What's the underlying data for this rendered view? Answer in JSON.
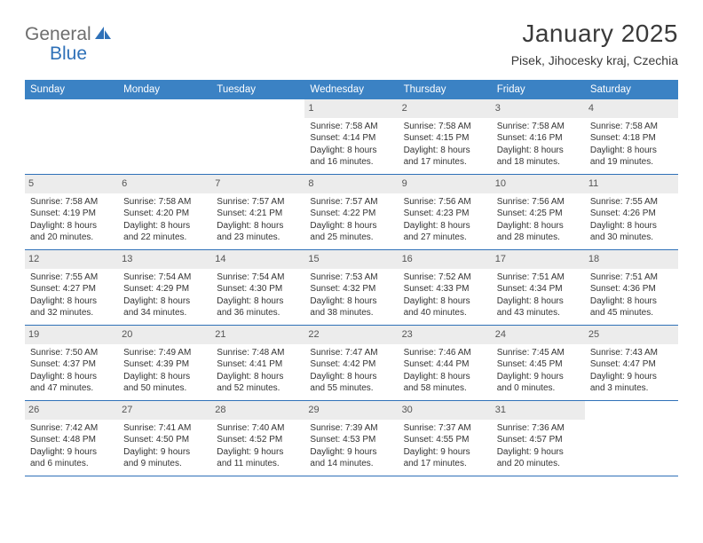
{
  "brand": {
    "part1": "General",
    "part2": "Blue"
  },
  "title": "January 2025",
  "location": "Pisek, Jihocesky kraj, Czechia",
  "colors": {
    "header_bar": "#3b82c4",
    "brand_gray": "#6e6e6e",
    "brand_blue": "#2f71b8",
    "row_border": "#2f71b8",
    "daynum_bg": "#ececec",
    "text": "#333333"
  },
  "daysOfWeek": [
    "Sunday",
    "Monday",
    "Tuesday",
    "Wednesday",
    "Thursday",
    "Friday",
    "Saturday"
  ],
  "weeks": [
    [
      null,
      null,
      null,
      {
        "n": "1",
        "sr": "Sunrise: 7:58 AM",
        "ss": "Sunset: 4:14 PM",
        "d1": "Daylight: 8 hours",
        "d2": "and 16 minutes."
      },
      {
        "n": "2",
        "sr": "Sunrise: 7:58 AM",
        "ss": "Sunset: 4:15 PM",
        "d1": "Daylight: 8 hours",
        "d2": "and 17 minutes."
      },
      {
        "n": "3",
        "sr": "Sunrise: 7:58 AM",
        "ss": "Sunset: 4:16 PM",
        "d1": "Daylight: 8 hours",
        "d2": "and 18 minutes."
      },
      {
        "n": "4",
        "sr": "Sunrise: 7:58 AM",
        "ss": "Sunset: 4:18 PM",
        "d1": "Daylight: 8 hours",
        "d2": "and 19 minutes."
      }
    ],
    [
      {
        "n": "5",
        "sr": "Sunrise: 7:58 AM",
        "ss": "Sunset: 4:19 PM",
        "d1": "Daylight: 8 hours",
        "d2": "and 20 minutes."
      },
      {
        "n": "6",
        "sr": "Sunrise: 7:58 AM",
        "ss": "Sunset: 4:20 PM",
        "d1": "Daylight: 8 hours",
        "d2": "and 22 minutes."
      },
      {
        "n": "7",
        "sr": "Sunrise: 7:57 AM",
        "ss": "Sunset: 4:21 PM",
        "d1": "Daylight: 8 hours",
        "d2": "and 23 minutes."
      },
      {
        "n": "8",
        "sr": "Sunrise: 7:57 AM",
        "ss": "Sunset: 4:22 PM",
        "d1": "Daylight: 8 hours",
        "d2": "and 25 minutes."
      },
      {
        "n": "9",
        "sr": "Sunrise: 7:56 AM",
        "ss": "Sunset: 4:23 PM",
        "d1": "Daylight: 8 hours",
        "d2": "and 27 minutes."
      },
      {
        "n": "10",
        "sr": "Sunrise: 7:56 AM",
        "ss": "Sunset: 4:25 PM",
        "d1": "Daylight: 8 hours",
        "d2": "and 28 minutes."
      },
      {
        "n": "11",
        "sr": "Sunrise: 7:55 AM",
        "ss": "Sunset: 4:26 PM",
        "d1": "Daylight: 8 hours",
        "d2": "and 30 minutes."
      }
    ],
    [
      {
        "n": "12",
        "sr": "Sunrise: 7:55 AM",
        "ss": "Sunset: 4:27 PM",
        "d1": "Daylight: 8 hours",
        "d2": "and 32 minutes."
      },
      {
        "n": "13",
        "sr": "Sunrise: 7:54 AM",
        "ss": "Sunset: 4:29 PM",
        "d1": "Daylight: 8 hours",
        "d2": "and 34 minutes."
      },
      {
        "n": "14",
        "sr": "Sunrise: 7:54 AM",
        "ss": "Sunset: 4:30 PM",
        "d1": "Daylight: 8 hours",
        "d2": "and 36 minutes."
      },
      {
        "n": "15",
        "sr": "Sunrise: 7:53 AM",
        "ss": "Sunset: 4:32 PM",
        "d1": "Daylight: 8 hours",
        "d2": "and 38 minutes."
      },
      {
        "n": "16",
        "sr": "Sunrise: 7:52 AM",
        "ss": "Sunset: 4:33 PM",
        "d1": "Daylight: 8 hours",
        "d2": "and 40 minutes."
      },
      {
        "n": "17",
        "sr": "Sunrise: 7:51 AM",
        "ss": "Sunset: 4:34 PM",
        "d1": "Daylight: 8 hours",
        "d2": "and 43 minutes."
      },
      {
        "n": "18",
        "sr": "Sunrise: 7:51 AM",
        "ss": "Sunset: 4:36 PM",
        "d1": "Daylight: 8 hours",
        "d2": "and 45 minutes."
      }
    ],
    [
      {
        "n": "19",
        "sr": "Sunrise: 7:50 AM",
        "ss": "Sunset: 4:37 PM",
        "d1": "Daylight: 8 hours",
        "d2": "and 47 minutes."
      },
      {
        "n": "20",
        "sr": "Sunrise: 7:49 AM",
        "ss": "Sunset: 4:39 PM",
        "d1": "Daylight: 8 hours",
        "d2": "and 50 minutes."
      },
      {
        "n": "21",
        "sr": "Sunrise: 7:48 AM",
        "ss": "Sunset: 4:41 PM",
        "d1": "Daylight: 8 hours",
        "d2": "and 52 minutes."
      },
      {
        "n": "22",
        "sr": "Sunrise: 7:47 AM",
        "ss": "Sunset: 4:42 PM",
        "d1": "Daylight: 8 hours",
        "d2": "and 55 minutes."
      },
      {
        "n": "23",
        "sr": "Sunrise: 7:46 AM",
        "ss": "Sunset: 4:44 PM",
        "d1": "Daylight: 8 hours",
        "d2": "and 58 minutes."
      },
      {
        "n": "24",
        "sr": "Sunrise: 7:45 AM",
        "ss": "Sunset: 4:45 PM",
        "d1": "Daylight: 9 hours",
        "d2": "and 0 minutes."
      },
      {
        "n": "25",
        "sr": "Sunrise: 7:43 AM",
        "ss": "Sunset: 4:47 PM",
        "d1": "Daylight: 9 hours",
        "d2": "and 3 minutes."
      }
    ],
    [
      {
        "n": "26",
        "sr": "Sunrise: 7:42 AM",
        "ss": "Sunset: 4:48 PM",
        "d1": "Daylight: 9 hours",
        "d2": "and 6 minutes."
      },
      {
        "n": "27",
        "sr": "Sunrise: 7:41 AM",
        "ss": "Sunset: 4:50 PM",
        "d1": "Daylight: 9 hours",
        "d2": "and 9 minutes."
      },
      {
        "n": "28",
        "sr": "Sunrise: 7:40 AM",
        "ss": "Sunset: 4:52 PM",
        "d1": "Daylight: 9 hours",
        "d2": "and 11 minutes."
      },
      {
        "n": "29",
        "sr": "Sunrise: 7:39 AM",
        "ss": "Sunset: 4:53 PM",
        "d1": "Daylight: 9 hours",
        "d2": "and 14 minutes."
      },
      {
        "n": "30",
        "sr": "Sunrise: 7:37 AM",
        "ss": "Sunset: 4:55 PM",
        "d1": "Daylight: 9 hours",
        "d2": "and 17 minutes."
      },
      {
        "n": "31",
        "sr": "Sunrise: 7:36 AM",
        "ss": "Sunset: 4:57 PM",
        "d1": "Daylight: 9 hours",
        "d2": "and 20 minutes."
      },
      null
    ]
  ]
}
